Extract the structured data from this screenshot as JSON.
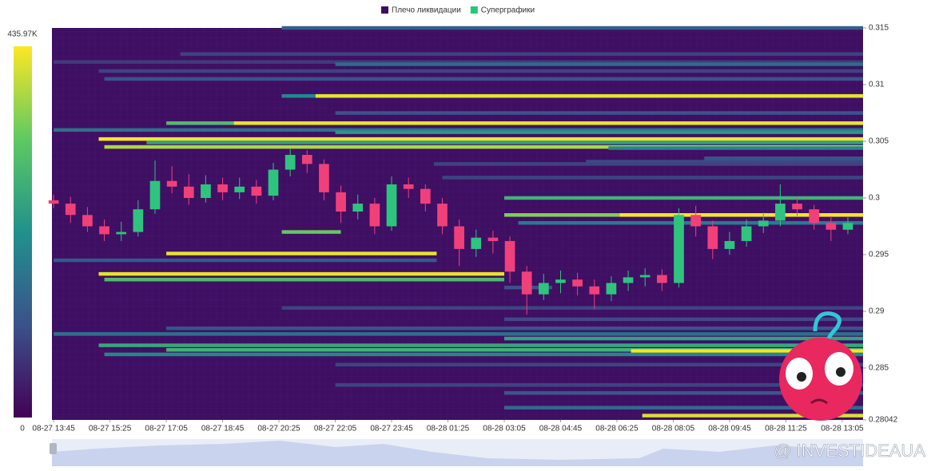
{
  "chart_data": {
    "type": "liquidation-heatmap",
    "legend": [
      {
        "name": "Плечо ликвидации",
        "color": "#3b0f5e"
      },
      {
        "name": "Суперграфики",
        "color": "#22c97a"
      }
    ],
    "scale_max": {
      "value": 435970,
      "label": "435.97K"
    },
    "scale_min": 0,
    "ylim": [
      0.28042,
      0.315
    ],
    "yticks": [
      0.315,
      0.31,
      0.305,
      0.3,
      0.295,
      0.29,
      0.285,
      0.28042
    ],
    "xlim": [
      "08-27 13:42",
      "08-28 13:42"
    ],
    "xticks": [
      "08-27 13:45",
      "08-27 15:25",
      "08-27 17:05",
      "08-27 18:45",
      "08-27 20:25",
      "08-27 22:05",
      "08-27 23:45",
      "08-28 01:25",
      "08-28 03:05",
      "08-28 04:45",
      "08-28 06:25",
      "08-28 08:05",
      "08-28 09:45",
      "08-28 11:25",
      "08-28 13:05"
    ],
    "up_color": "#2ec47e",
    "down_color": "#f0407a",
    "x": [
      "08-27 13:45",
      "08-27 14:15",
      "08-27 14:45",
      "08-27 15:15",
      "08-27 15:45",
      "08-27 16:15",
      "08-27 16:45",
      "08-27 17:15",
      "08-27 17:45",
      "08-27 18:15",
      "08-27 18:45",
      "08-27 19:15",
      "08-27 19:45",
      "08-27 20:15",
      "08-27 20:45",
      "08-27 21:15",
      "08-27 21:45",
      "08-27 22:15",
      "08-27 22:45",
      "08-27 23:15",
      "08-27 23:45",
      "08-28 00:15",
      "08-28 00:45",
      "08-28 01:15",
      "08-28 01:45",
      "08-28 02:15",
      "08-28 02:45",
      "08-28 03:15",
      "08-28 03:45",
      "08-28 04:15",
      "08-28 04:45",
      "08-28 05:15",
      "08-28 05:45",
      "08-28 06:15",
      "08-28 06:45",
      "08-28 07:15",
      "08-28 07:45",
      "08-28 08:15",
      "08-28 08:45",
      "08-28 09:15",
      "08-28 09:45",
      "08-28 10:15",
      "08-28 10:45",
      "08-28 11:15",
      "08-28 11:45",
      "08-28 12:15",
      "08-28 12:45",
      "08-28 13:15"
    ],
    "candles": [
      [
        0.2998,
        0.3003,
        0.2991,
        0.2995
      ],
      [
        0.2995,
        0.3001,
        0.2978,
        0.2985
      ],
      [
        0.2985,
        0.2992,
        0.297,
        0.2975
      ],
      [
        0.2975,
        0.2981,
        0.2962,
        0.2968
      ],
      [
        0.2968,
        0.2979,
        0.2962,
        0.297
      ],
      [
        0.297,
        0.2998,
        0.2966,
        0.299
      ],
      [
        0.299,
        0.3033,
        0.2986,
        0.3015
      ],
      [
        0.3015,
        0.3028,
        0.3004,
        0.301
      ],
      [
        0.301,
        0.3021,
        0.2994,
        0.3
      ],
      [
        0.3,
        0.302,
        0.2996,
        0.3012
      ],
      [
        0.3012,
        0.3018,
        0.2998,
        0.3005
      ],
      [
        0.3005,
        0.3018,
        0.2999,
        0.301
      ],
      [
        0.301,
        0.3016,
        0.2995,
        0.3002
      ],
      [
        0.3002,
        0.3031,
        0.2998,
        0.3025
      ],
      [
        0.3025,
        0.3043,
        0.3019,
        0.3038
      ],
      [
        0.3038,
        0.3042,
        0.3022,
        0.303
      ],
      [
        0.303,
        0.3034,
        0.2998,
        0.3005
      ],
      [
        0.3005,
        0.3011,
        0.2978,
        0.2988
      ],
      [
        0.2988,
        0.3003,
        0.2981,
        0.2995
      ],
      [
        0.2995,
        0.3,
        0.2968,
        0.2975
      ],
      [
        0.2975,
        0.3019,
        0.2971,
        0.3012
      ],
      [
        0.3012,
        0.3018,
        0.3,
        0.3008
      ],
      [
        0.3008,
        0.3012,
        0.2988,
        0.2995
      ],
      [
        0.2995,
        0.3,
        0.2968,
        0.2975
      ],
      [
        0.2975,
        0.2981,
        0.294,
        0.2955
      ],
      [
        0.2955,
        0.2972,
        0.2948,
        0.2965
      ],
      [
        0.2965,
        0.2971,
        0.2951,
        0.2962
      ],
      [
        0.2962,
        0.2966,
        0.2925,
        0.2935
      ],
      [
        0.2935,
        0.294,
        0.2897,
        0.2915
      ],
      [
        0.2915,
        0.2933,
        0.291,
        0.2925
      ],
      [
        0.2925,
        0.2936,
        0.2916,
        0.2928
      ],
      [
        0.2928,
        0.2934,
        0.2914,
        0.2922
      ],
      [
        0.2922,
        0.2928,
        0.2902,
        0.2915
      ],
      [
        0.2915,
        0.2931,
        0.2909,
        0.2925
      ],
      [
        0.2925,
        0.2936,
        0.2918,
        0.293
      ],
      [
        0.293,
        0.2938,
        0.2922,
        0.2932
      ],
      [
        0.2932,
        0.2937,
        0.2918,
        0.2925
      ],
      [
        0.2925,
        0.2991,
        0.2921,
        0.2985
      ],
      [
        0.2985,
        0.2993,
        0.2966,
        0.2975
      ],
      [
        0.2975,
        0.298,
        0.2946,
        0.2955
      ],
      [
        0.2955,
        0.297,
        0.295,
        0.2962
      ],
      [
        0.2962,
        0.2981,
        0.2957,
        0.2975
      ],
      [
        0.2975,
        0.2987,
        0.2969,
        0.298
      ],
      [
        0.298,
        0.3012,
        0.2975,
        0.2995
      ],
      [
        0.2995,
        0.3001,
        0.2984,
        0.299
      ],
      [
        0.299,
        0.2994,
        0.2972,
        0.2978
      ],
      [
        0.2978,
        0.2984,
        0.2962,
        0.2972
      ],
      [
        0.2972,
        0.2983,
        0.2968,
        0.2978
      ]
    ],
    "bands": [
      {
        "price": 0.315,
        "start": "08-27 20:30",
        "value": 130000
      },
      {
        "price": 0.3127,
        "start": "08-27 17:30",
        "value": 90000
      },
      {
        "price": 0.312,
        "start": "08-27 13:45",
        "value": 80000
      },
      {
        "price": 0.3118,
        "start": "08-27 22:05",
        "value": 150000
      },
      {
        "price": 0.3112,
        "start": "08-27 15:05",
        "value": 90000
      },
      {
        "price": 0.3105,
        "start": "08-27 15:15",
        "value": 110000
      },
      {
        "price": 0.309,
        "start": "08-27 20:30",
        "value": 200000
      },
      {
        "price": 0.309,
        "start": "08-27 21:30",
        "value": 420000
      },
      {
        "price": 0.3075,
        "start": "08-27 22:05",
        "value": 110000
      },
      {
        "price": 0.3066,
        "start": "08-27 17:05",
        "value": 300000
      },
      {
        "price": 0.3066,
        "start": "08-27 19:05",
        "value": 420000
      },
      {
        "price": 0.306,
        "start": "08-27 13:45",
        "value": 160000
      },
      {
        "price": 0.3058,
        "start": "08-27 22:05",
        "value": 230000
      },
      {
        "price": 0.3052,
        "start": "08-27 15:05",
        "value": 430000
      },
      {
        "price": 0.3049,
        "start": "08-27 16:30",
        "value": 250000
      },
      {
        "price": 0.3045,
        "start": "08-27 15:15",
        "value": 380000
      },
      {
        "price": 0.3044,
        "start": "08-28 06:10",
        "value": 200000
      },
      {
        "price": 0.3035,
        "start": "08-28 09:00",
        "value": 110000
      },
      {
        "price": 0.3032,
        "start": "08-28 05:30",
        "value": 100000
      },
      {
        "price": 0.303,
        "start": "08-28 01:00",
        "value": 90000
      },
      {
        "price": 0.3018,
        "start": "08-28 01:15",
        "value": 90000
      },
      {
        "price": 0.3,
        "start": "08-28 03:05",
        "value": 280000
      },
      {
        "price": 0.2985,
        "start": "08-28 03:05",
        "value": 350000
      },
      {
        "price": 0.2985,
        "start": "08-28 06:30",
        "value": 430000
      },
      {
        "price": 0.2978,
        "start": "08-28 03:30",
        "value": 180000
      },
      {
        "price": 0.297,
        "start": "08-27 20:30",
        "end": "08-27 22:15",
        "value": 330000
      },
      {
        "price": 0.2951,
        "start": "08-27 17:05",
        "end": "08-28 01:05",
        "value": 420000
      },
      {
        "price": 0.2945,
        "start": "08-27 13:45",
        "end": "08-28 01:05",
        "value": 120000
      },
      {
        "price": 0.2933,
        "start": "08-27 15:05",
        "end": "08-28 03:05",
        "value": 420000
      },
      {
        "price": 0.2928,
        "start": "08-27 15:15",
        "end": "08-28 03:05",
        "value": 300000
      },
      {
        "price": 0.2921,
        "start": "08-28 03:05",
        "end": "08-28 04:30",
        "value": 110000
      },
      {
        "price": 0.2903,
        "start": "08-27 20:30",
        "value": 90000
      },
      {
        "price": 0.2893,
        "start": "08-28 03:05",
        "value": 100000
      },
      {
        "price": 0.2885,
        "start": "08-27 17:05",
        "value": 110000
      },
      {
        "price": 0.288,
        "start": "08-27 13:45",
        "value": 160000
      },
      {
        "price": 0.2876,
        "start": "08-28 03:05",
        "value": 250000
      },
      {
        "price": 0.287,
        "start": "08-27 15:05",
        "value": 260000
      },
      {
        "price": 0.2866,
        "start": "08-27 17:05",
        "value": 280000
      },
      {
        "price": 0.2865,
        "start": "08-28 06:50",
        "value": 430000
      },
      {
        "price": 0.2862,
        "start": "08-27 15:15",
        "value": 200000
      },
      {
        "price": 0.2853,
        "start": "08-27 22:05",
        "value": 90000
      },
      {
        "price": 0.2835,
        "start": "08-27 22:05",
        "value": 90000
      },
      {
        "price": 0.2828,
        "start": "08-28 03:05",
        "value": 120000
      },
      {
        "price": 0.2815,
        "start": "08-28 03:05",
        "value": 150000
      },
      {
        "price": 0.2808,
        "start": "08-28 07:10",
        "value": 410000
      }
    ],
    "watermark": "@ INVESTIDEAUA"
  }
}
